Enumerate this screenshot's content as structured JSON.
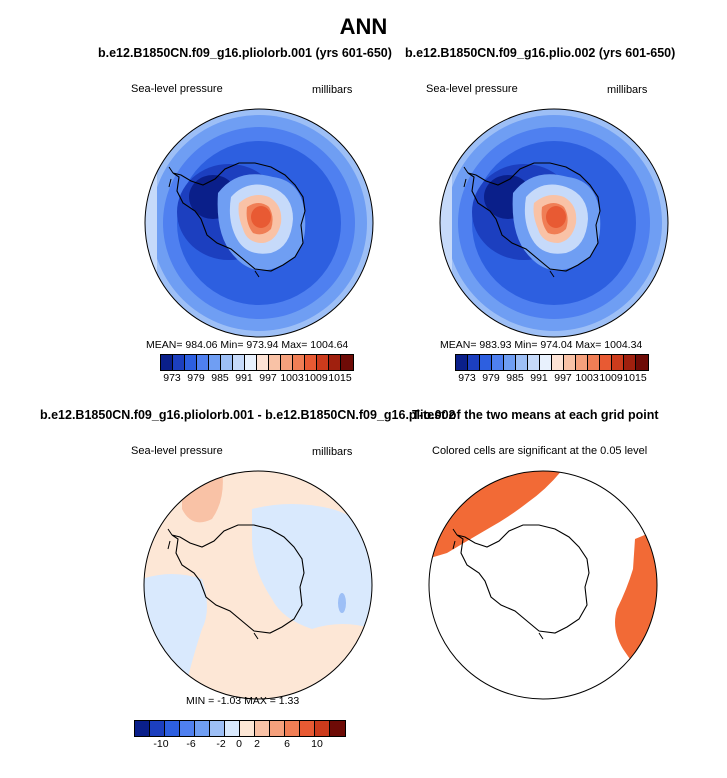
{
  "main_title": "ANN",
  "panels": [
    {
      "title": "b.e12.B1850CN.f09_g16.pliolorb.001 (yrs 601-650)",
      "variable": "Sea-level pressure",
      "units": "millibars",
      "stats": "MEAN= 984.06   Min= 973.94   Max= 1004.64",
      "colorbar_ticks": [
        "973",
        "979",
        "985",
        "991",
        "997",
        "1003",
        "1009",
        "1015"
      ]
    },
    {
      "title": "b.e12.B1850CN.f09_g16.plio.002 (yrs 601-650)",
      "variable": "Sea-level pressure",
      "units": "millibars",
      "stats": "MEAN= 983.93   Min= 974.04   Max= 1004.34",
      "colorbar_ticks": [
        "973",
        "979",
        "985",
        "991",
        "997",
        "1003",
        "1009",
        "1015"
      ]
    },
    {
      "title": "b.e12.B1850CN.f09_g16.pliolorb.001 - b.e12.B1850CN.f09_g16.plio.002",
      "variable": "Sea-level pressure",
      "units": "millibars",
      "stats": "MIN =   -1.03  MAX =    1.33",
      "colorbar_ticks": [
        "-10",
        "-6",
        "-2",
        "0",
        "2",
        "6",
        "10"
      ]
    },
    {
      "title": "T-test of the two means at each grid point",
      "subtitle": "Colored cells are significant at the 0.05 level"
    }
  ],
  "colors": {
    "abs_scale": [
      "#0a1f8a",
      "#1c3fbf",
      "#2d5fe0",
      "#4f80f0",
      "#6f9ef3",
      "#9dbff6",
      "#c6dafa",
      "#e8f1fd",
      "#fde3d5",
      "#f9c2a6",
      "#f5a07c",
      "#f07e55",
      "#e85a33",
      "#cc3b1c",
      "#a0200e",
      "#6e0b06"
    ],
    "diff_scale": [
      "#0a1f8a",
      "#1c3fbf",
      "#2d5fe0",
      "#4f80f0",
      "#6f9ef3",
      "#9dbff6",
      "#d9e9fd",
      "#fde7d6",
      "#f9c2a6",
      "#f5a07c",
      "#f07e55",
      "#e85a33",
      "#cc3b1c",
      "#6e0b06"
    ],
    "significant": "#f26a36"
  }
}
